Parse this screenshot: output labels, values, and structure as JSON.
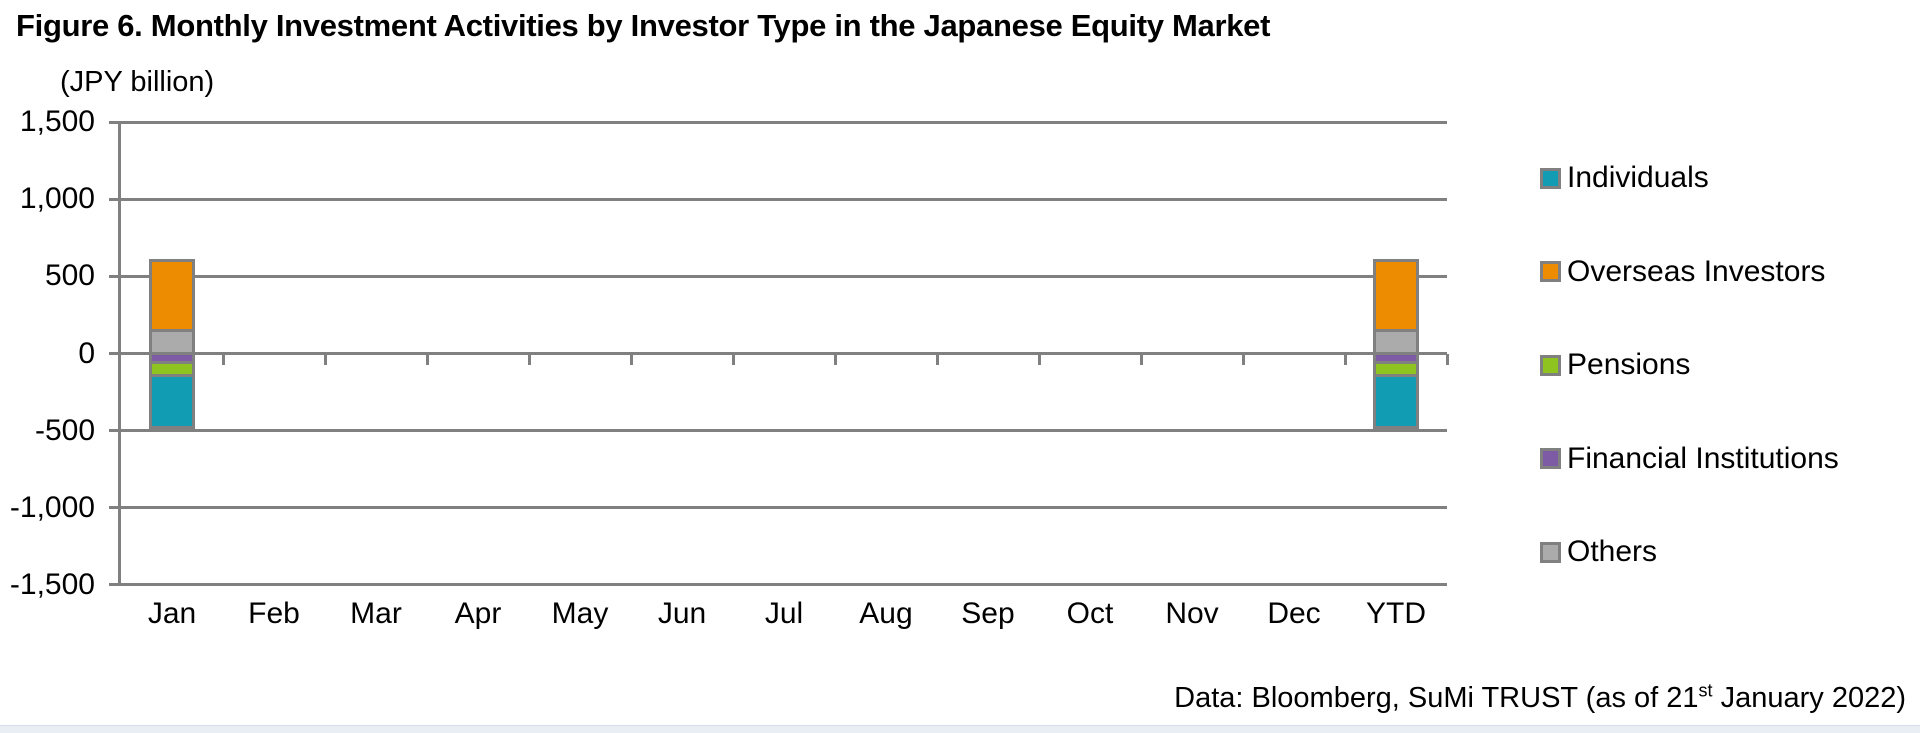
{
  "page": {
    "title": "Figure 6. Monthly Investment Activities by Investor Type in the Japanese Equity Market",
    "units_label": "(JPY billion)",
    "source": {
      "prefix": "Data: Bloomberg, SuMi TRUST (as of 21",
      "superscript": "st",
      "suffix": " January 2022)"
    }
  },
  "colors": {
    "grid": "#808080",
    "bar_border": "#808080",
    "footer_band": "#E9EEF4"
  },
  "chart_data": {
    "type": "bar",
    "stacked": true,
    "title": "Figure 6. Monthly Investment Activities by Investor Type in the Japanese Equity Market",
    "unit_label": "(JPY billion)",
    "ylabel": "JPY billion",
    "xlabel": "",
    "grid": true,
    "categories": [
      "Jan",
      "Feb",
      "Mar",
      "Apr",
      "May",
      "Jun",
      "Jul",
      "Aug",
      "Sep",
      "Oct",
      "Nov",
      "Dec",
      "YTD"
    ],
    "series": [
      {
        "name": "Individuals",
        "color": "#129CB4",
        "values": [
          -340,
          0,
          0,
          0,
          0,
          0,
          0,
          0,
          0,
          0,
          0,
          0,
          -340
        ]
      },
      {
        "name": "Overseas Investors",
        "color": "#EE8C00",
        "values": [
          450,
          0,
          0,
          0,
          0,
          0,
          0,
          0,
          0,
          0,
          0,
          0,
          450
        ]
      },
      {
        "name": "Pensions",
        "color": "#8EC320",
        "values": [
          -80,
          0,
          0,
          0,
          0,
          0,
          0,
          0,
          0,
          0,
          0,
          0,
          -80
        ]
      },
      {
        "name": "Financial Institutions",
        "color": "#7E5BA5",
        "values": [
          -60,
          0,
          0,
          0,
          0,
          0,
          0,
          0,
          0,
          0,
          0,
          0,
          -60
        ]
      },
      {
        "name": "Others",
        "color": "#ABABAB",
        "values": [
          150,
          0,
          0,
          0,
          0,
          0,
          0,
          0,
          0,
          0,
          0,
          0,
          150
        ]
      }
    ],
    "positive_stack_order": [
      "Others",
      "Overseas Investors"
    ],
    "negative_stack_order": [
      "Financial Institutions",
      "Pensions",
      "Individuals"
    ],
    "y_axis": {
      "min": -1500,
      "max": 1500,
      "tick_step": 500,
      "tick_values": [
        1500,
        1000,
        500,
        0,
        -500,
        -1000,
        -1500
      ],
      "tick_labels": [
        "1,500",
        "1,000",
        "500",
        "0",
        "-500",
        "-1,000",
        "-1,500"
      ]
    },
    "legend": {
      "position": "right",
      "items": [
        "Individuals",
        "Overseas Investors",
        "Pensions",
        "Financial Institutions",
        "Others"
      ]
    }
  }
}
